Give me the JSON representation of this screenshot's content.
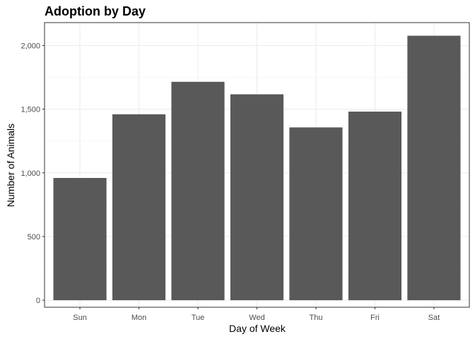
{
  "chart_data": {
    "type": "bar",
    "title": "Adoption by Day",
    "xlabel": "Day of Week",
    "ylabel": "Number of Animals",
    "categories": [
      "Sun",
      "Mon",
      "Tue",
      "Wed",
      "Thu",
      "Fri",
      "Sat"
    ],
    "values": [
      960,
      1460,
      1715,
      1617,
      1357,
      1481,
      2077
    ],
    "ylim": [
      -55,
      2180
    ],
    "yticks": [
      0,
      500,
      1000,
      1500,
      2000
    ],
    "ytick_labels": [
      "0",
      "500",
      "1,000",
      "1,500",
      "2,000"
    ],
    "grid": true,
    "legend": "none",
    "colors": {
      "bar": "#595959",
      "grid_major": "#ebebeb",
      "grid_minor": "#f5f5f5",
      "panel_border": "#333333",
      "tick_text": "#4d4d4d"
    }
  }
}
